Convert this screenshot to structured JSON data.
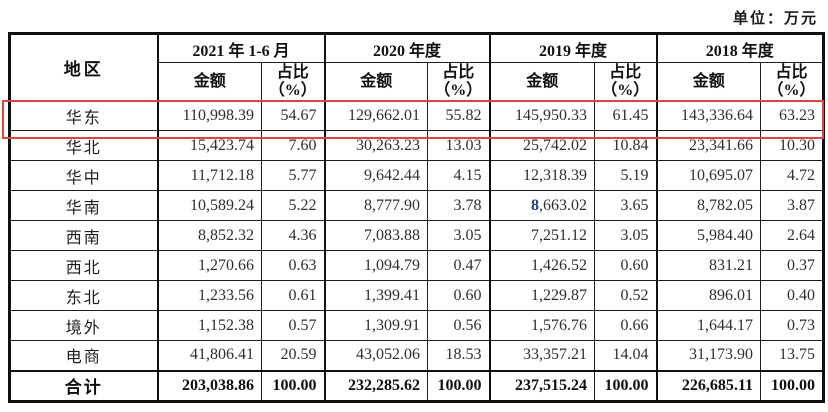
{
  "unit_label": "单位：万元",
  "colors": {
    "highlight_red": "#dd4540",
    "blue_digit": "#1c3f77"
  },
  "table": {
    "region_header": "地区",
    "amount_header": "金额",
    "ratio_header_line1": "占比",
    "ratio_header_line2": "（%）",
    "periods": [
      "2021 年 1-6 月",
      "2020 年度",
      "2019 年度",
      "2018 年度"
    ],
    "special_cell": {
      "row": 3,
      "cell": 4,
      "colored_prefix_length": 1
    },
    "rows": [
      {
        "region": "华东",
        "highlighted": true,
        "cells": [
          "110,998.39",
          "54.67",
          "129,662.01",
          "55.82",
          "145,950.33",
          "61.45",
          "143,336.64",
          "63.23"
        ]
      },
      {
        "region": "华北",
        "cells": [
          "15,423.74",
          "7.60",
          "30,263.23",
          "13.03",
          "25,742.02",
          "10.84",
          "23,341.66",
          "10.30"
        ]
      },
      {
        "region": "华中",
        "cells": [
          "11,712.18",
          "5.77",
          "9,642.44",
          "4.15",
          "12,318.39",
          "5.19",
          "10,695.07",
          "4.72"
        ]
      },
      {
        "region": "华南",
        "cells": [
          "10,589.24",
          "5.22",
          "8,777.90",
          "3.78",
          "8,663.02",
          "3.65",
          "8,782.05",
          "3.87"
        ]
      },
      {
        "region": "西南",
        "cells": [
          "8,852.32",
          "4.36",
          "7,083.88",
          "3.05",
          "7,251.12",
          "3.05",
          "5,984.40",
          "2.64"
        ]
      },
      {
        "region": "西北",
        "cells": [
          "1,270.66",
          "0.63",
          "1,094.79",
          "0.47",
          "1,426.52",
          "0.60",
          "831.21",
          "0.37"
        ]
      },
      {
        "region": "东北",
        "cells": [
          "1,233.56",
          "0.61",
          "1,399.41",
          "0.60",
          "1,229.87",
          "0.52",
          "896.01",
          "0.40"
        ]
      },
      {
        "region": "境外",
        "cells": [
          "1,152.38",
          "0.57",
          "1,309.91",
          "0.56",
          "1,576.76",
          "0.66",
          "1,644.17",
          "0.73"
        ]
      },
      {
        "region": "电商",
        "cells": [
          "41,806.41",
          "20.59",
          "43,052.06",
          "18.53",
          "33,357.21",
          "14.04",
          "31,173.90",
          "13.75"
        ]
      },
      {
        "region": "合计",
        "is_total": true,
        "cells": [
          "203,038.86",
          "100.00",
          "232,285.62",
          "100.00",
          "237,515.24",
          "100.00",
          "226,685.11",
          "100.00"
        ]
      }
    ]
  }
}
